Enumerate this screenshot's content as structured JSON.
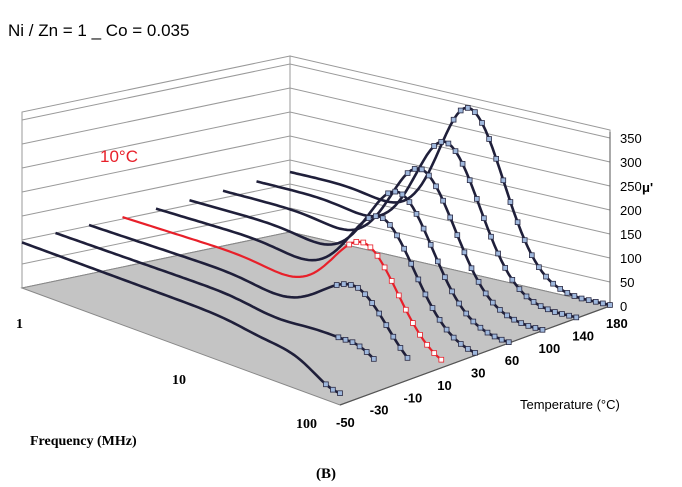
{
  "chart_data": {
    "type": "line",
    "title": "Ni / Zn = 1  _  Co = 0.035",
    "panel_label": "(B)",
    "xlabel": "Frequency (MHz)",
    "ylabel": "Temperature (°C)",
    "zlabel": "μ'",
    "x_scale": "log",
    "x_ticks": [
      "1",
      "10",
      "100"
    ],
    "y_ticks": [
      "-50",
      "-30",
      "-10",
      "10",
      "30",
      "60",
      "100",
      "140",
      "180"
    ],
    "z_ticks": [
      "0",
      "50",
      "100",
      "150",
      "200",
      "250",
      "300",
      "350"
    ],
    "z_range": [
      0,
      350
    ],
    "highlighted_series": "10°C",
    "highlight_label": "10°C",
    "highlight_color": "#e8202a",
    "curve_color": "#1f1f3a",
    "marker_color": "#9fb8dd",
    "floor_color": "#c4c4c4",
    "series": [
      {
        "temperature": -50,
        "low_mu": 95,
        "peak_mu": 25,
        "peak_freq": 100
      },
      {
        "temperature": -30,
        "low_mu": 100,
        "peak_mu": 90,
        "peak_freq": 70
      },
      {
        "temperature": -10,
        "low_mu": 102,
        "peak_mu": 160,
        "peak_freq": 45
      },
      {
        "temperature": 10,
        "low_mu": 104,
        "peak_mu": 210,
        "peak_freq": 32
      },
      {
        "temperature": 30,
        "low_mu": 107,
        "peak_mu": 230,
        "peak_freq": 25
      },
      {
        "temperature": 60,
        "low_mu": 110,
        "peak_mu": 250,
        "peak_freq": 20
      },
      {
        "temperature": 100,
        "low_mu": 115,
        "peak_mu": 270,
        "peak_freq": 17
      },
      {
        "temperature": 140,
        "low_mu": 120,
        "peak_mu": 300,
        "peak_freq": 15
      },
      {
        "temperature": 180,
        "low_mu": 125,
        "peak_mu": 345,
        "peak_freq": 13
      }
    ]
  }
}
